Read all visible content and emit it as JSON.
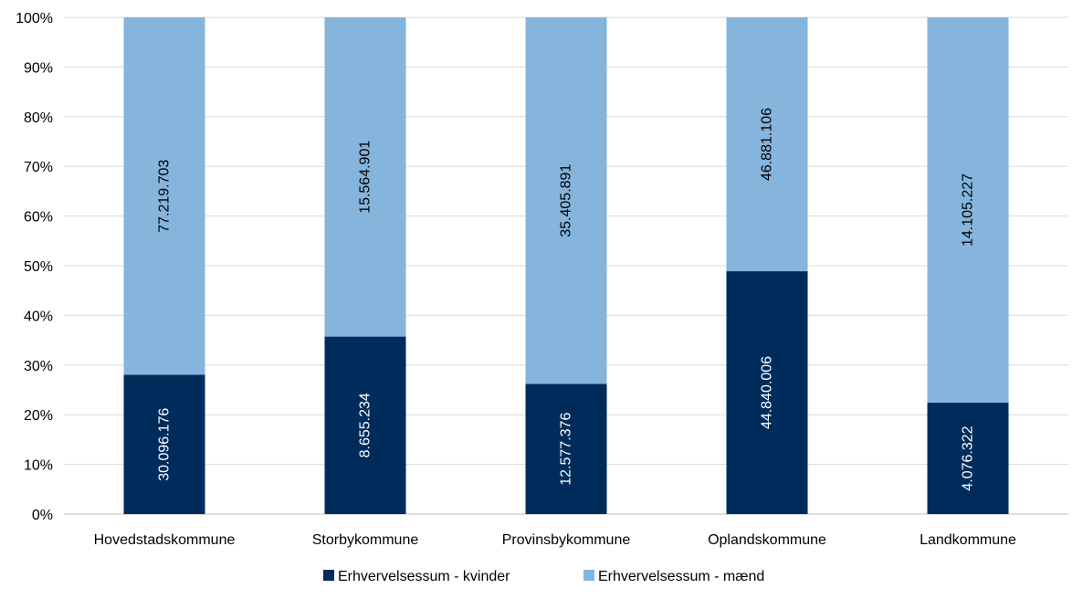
{
  "chart_data": {
    "type": "bar",
    "stacked": "percent",
    "title": "",
    "xlabel": "",
    "ylabel": "",
    "ylim": [
      0,
      100
    ],
    "yticks": [
      "0%",
      "10%",
      "20%",
      "30%",
      "40%",
      "50%",
      "60%",
      "70%",
      "80%",
      "90%",
      "100%"
    ],
    "grid": true,
    "legend_position": "bottom",
    "categories": [
      "Hovedstadskommune",
      "Storbykommune",
      "Provinsbykommune",
      "Oplandskommune",
      "Landkommune"
    ],
    "series": [
      {
        "name": "Erhvervelsessum - kvinder",
        "color": "#002C5C",
        "label_color": "#ffffff",
        "values": [
          30096176,
          8655234,
          12577376,
          44840006,
          4076322
        ],
        "labels": [
          "30.096.176",
          "8.655.234",
          "12.577.376",
          "44.840.006",
          "4.076.322"
        ]
      },
      {
        "name": "Erhvervelsessum - mænd",
        "color": "#85B4DC",
        "label_color": "#000000",
        "values": [
          77219703,
          15564901,
          35405891,
          46881106,
          14105227
        ],
        "labels": [
          "77.219.703",
          "15.564.901",
          "35.405.891",
          "46.881.106",
          "14.105.227"
        ]
      }
    ]
  }
}
